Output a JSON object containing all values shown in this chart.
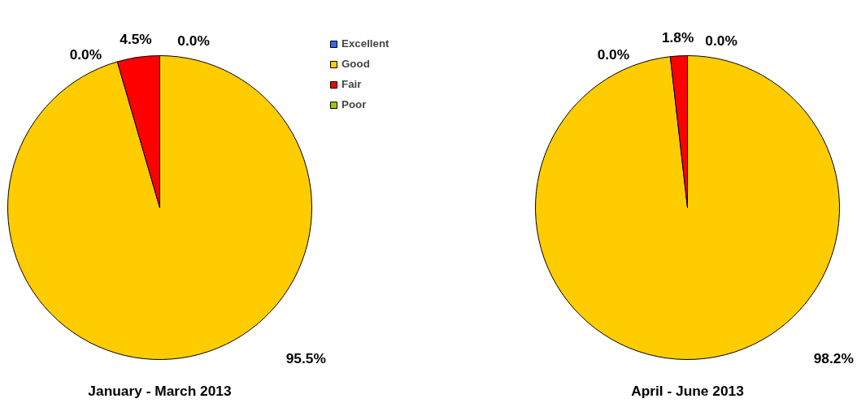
{
  "chart_data": [
    {
      "type": "pie",
      "title": "January - March 2013",
      "categories": [
        "Excellent",
        "Good",
        "Fair",
        "Poor"
      ],
      "values": [
        0.0,
        95.5,
        4.5,
        0.0
      ],
      "colors": [
        "#3366ff",
        "#ffcc00",
        "#ff0000",
        "#99cc00"
      ],
      "value_labels": [
        "0.0%",
        "95.5%",
        "4.5%",
        "0.0%"
      ],
      "legend": "right"
    },
    {
      "type": "pie",
      "title": "April - June 2013",
      "values": [
        0.0,
        98.2,
        1.8,
        0.0
      ],
      "colors": [
        "#3366ff",
        "#ffcc00",
        "#ff0000",
        "#99cc00"
      ],
      "value_labels": [
        "0.0%",
        "98.2%",
        "1.8%",
        "0.0%"
      ]
    }
  ]
}
